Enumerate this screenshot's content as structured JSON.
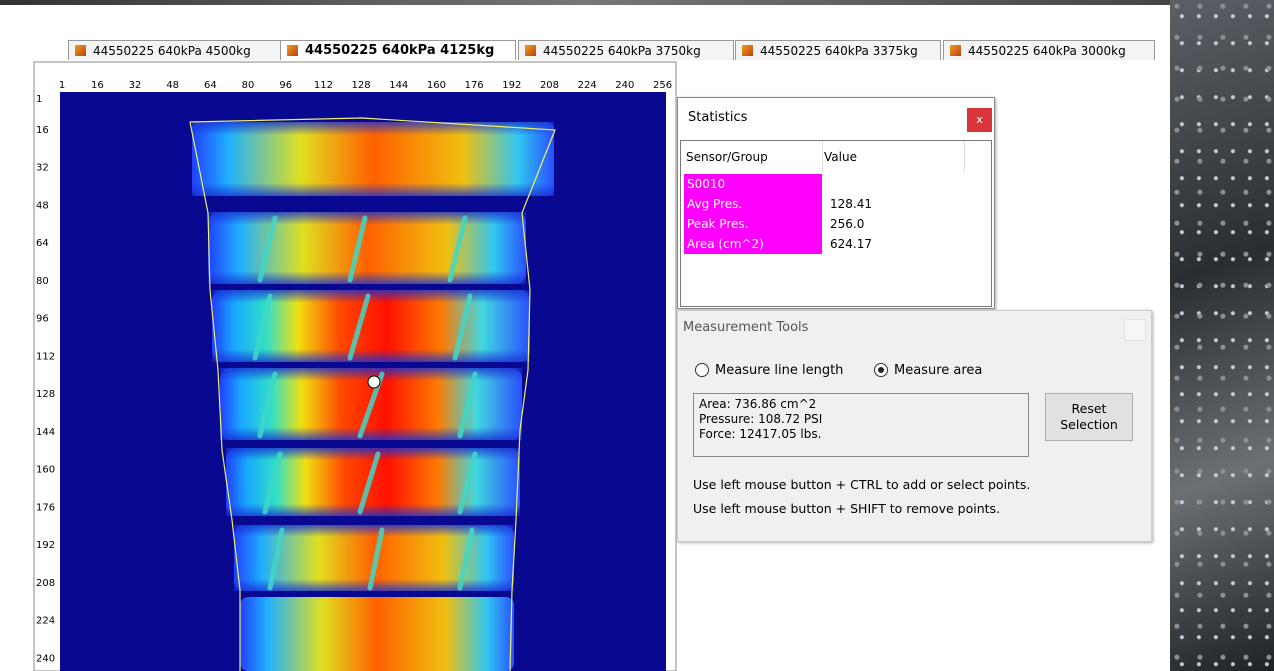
{
  "tabs": [
    "44550225 640kPa 4500kg",
    "44550225 640kPa 4125kg",
    "44550225 640kPa 3750kg",
    "44550225 640kPa 3375kg",
    "44550225 640kPa 3000kg"
  ],
  "ruler": {
    "columns": [
      1,
      16,
      32,
      48,
      64,
      80,
      96,
      112,
      128,
      144,
      160,
      176,
      192,
      208,
      224,
      240,
      256
    ],
    "rows": [
      1,
      16,
      32,
      48,
      64,
      80,
      96,
      112,
      128,
      144,
      160,
      176,
      192,
      208,
      224,
      240
    ]
  },
  "statistics": {
    "title": "Statistics",
    "close": "x",
    "headers": [
      "Sensor/Group",
      "Value"
    ],
    "rows": [
      [
        "S0010"
      ],
      [
        "Avg Pres.",
        "128.41"
      ],
      [
        "Peak Pres.",
        "256.0"
      ],
      [
        "Area (cm^2)",
        "624.17"
      ]
    ]
  },
  "measurement_tools": {
    "title": "Measurement Tools",
    "options": [
      "Measure line length",
      "Measure area"
    ],
    "readout": [
      "Area: 736.86 cm^2",
      "Pressure: 108.72 PSI",
      "Force: 12417.05 lbs."
    ],
    "button": [
      "Reset",
      "Selection"
    ],
    "instructions": [
      "Use left mouse button + CTRL to add or select points.",
      "Use left mouse button + SHIFT to remove points."
    ]
  }
}
